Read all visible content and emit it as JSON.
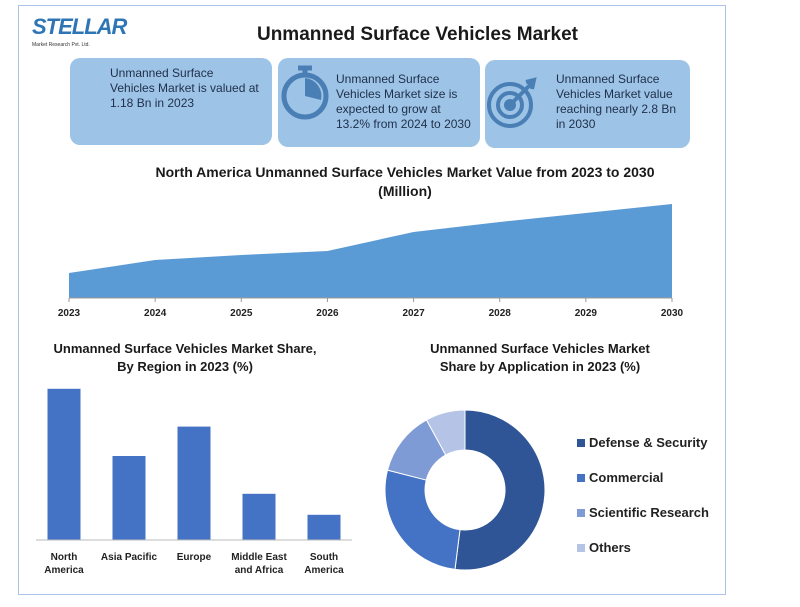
{
  "header": {
    "logo": "STELLAR",
    "logo_subtitle": "Market Research Pvt. Ltd.",
    "title": "Unmanned Surface Vehicles Market"
  },
  "stats": [
    "Unmanned Surface Vehicles Market is valued at 1.18 Bn in 2023",
    "Unmanned Surface Vehicles Market size is expected to grow at 13.2% from 2024 to 2030",
    "Unmanned Surface Vehicles Market value reaching nearly 2.8 Bn in 2030"
  ],
  "chart_data": [
    {
      "type": "area",
      "title": "North America Unmanned Surface Vehicles Market Value from 2023 to 2030 (Million)",
      "categories": [
        "2023",
        "2024",
        "2025",
        "2026",
        "2027",
        "2028",
        "2029",
        "2030"
      ],
      "values": [
        25,
        38,
        43,
        47,
        66,
        76,
        85,
        94
      ],
      "color": "#5b9bd5",
      "ylim": [
        0,
        100
      ]
    },
    {
      "type": "bar",
      "title": "Unmanned Surface Vehicles Market Share, By Region in 2023 (%)",
      "categories": [
        "North America",
        "Asia Pacific",
        "Europe",
        "Middle East and Africa",
        "South America"
      ],
      "values": [
        36,
        20,
        27,
        11,
        6
      ],
      "color": "#4472c4",
      "ylim": [
        0,
        40
      ]
    },
    {
      "type": "donut",
      "title": "Unmanned Surface Vehicles Market Share by Application in 2023 (%)",
      "categories": [
        "Defense & Security",
        "Commercial",
        "Scientific Research",
        "Others"
      ],
      "values": [
        52,
        27,
        13,
        8
      ],
      "colors": [
        "#2f5597",
        "#4472c4",
        "#7f9bd6",
        "#b4c3e6"
      ],
      "legend": "right"
    }
  ]
}
